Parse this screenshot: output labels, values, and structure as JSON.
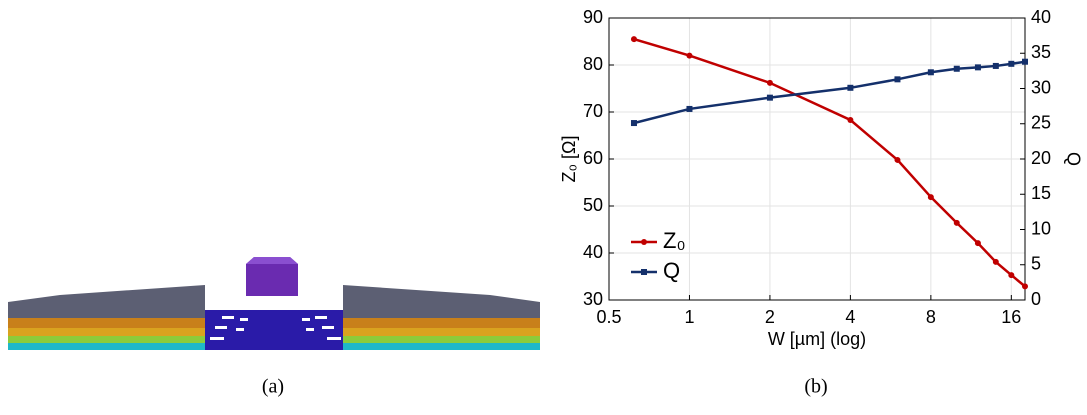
{
  "captions": [
    "(a)",
    "(b)"
  ],
  "chart_data": {
    "type": "line",
    "xlabel": "W [µm] (log)",
    "ylabel": "Z₀ [Ω]",
    "y2label": "Q",
    "x": [
      0.62,
      1,
      2,
      4,
      6,
      8,
      10,
      12,
      14,
      16,
      18
    ],
    "series": [
      {
        "name": "Z₀",
        "color": "#c00000",
        "marker": "circle",
        "values": [
          85.5,
          82,
          76.2,
          68.3,
          59.8,
          51.9,
          46.4,
          42.1,
          38.1,
          35.3,
          32.9
        ]
      },
      {
        "name": "Q",
        "color": "#14306b",
        "marker": "square",
        "axis": "y2",
        "values": [
          25.1,
          27.1,
          28.7,
          30.1,
          31.3,
          32.3,
          32.8,
          33.0,
          33.2,
          33.5,
          33.8
        ]
      }
    ],
    "xlim": [
      0.5,
      18
    ],
    "xticks": [
      0.5,
      1,
      2,
      4,
      8,
      16
    ],
    "xscale": "log",
    "ylim": [
      30,
      90
    ],
    "yticks": [
      30,
      40,
      50,
      60,
      70,
      80,
      90
    ],
    "y2lim": [
      0,
      40
    ],
    "y2ticks": [
      0,
      5,
      10,
      15,
      20,
      25,
      30,
      35,
      40
    ],
    "grid": true,
    "legend": "lower left"
  }
}
